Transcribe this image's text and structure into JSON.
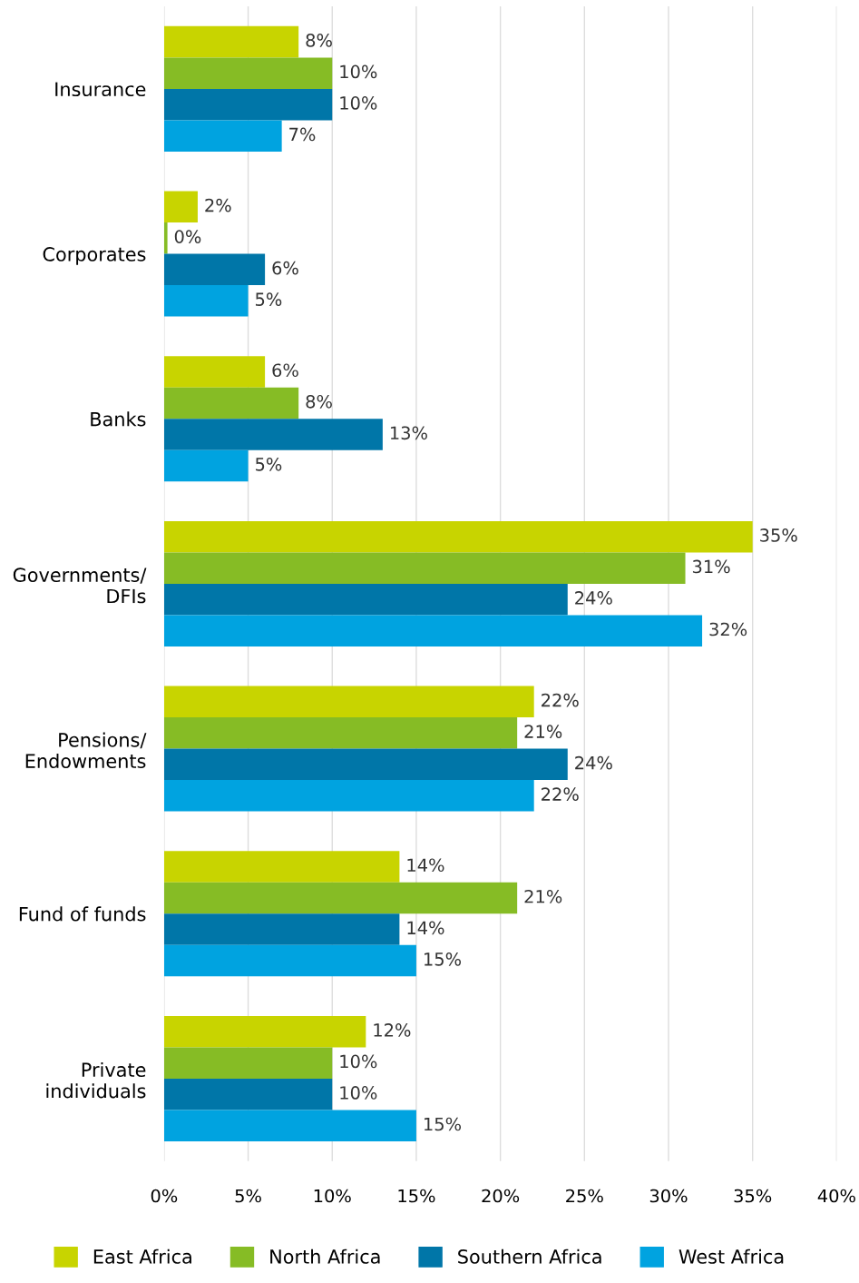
{
  "chart_data": {
    "type": "bar",
    "orientation": "horizontal",
    "categories": [
      "Insurance",
      "Corporates",
      "Banks",
      "Governments/\nDFIs",
      "Pensions/\nEndowments",
      "Fund of funds",
      "Private\nindividuals"
    ],
    "series": [
      {
        "name": "East Africa",
        "color": "#c8d400",
        "values": [
          8,
          2,
          6,
          35,
          22,
          14,
          12
        ],
        "value_labels": [
          "8%",
          "2%",
          "6%",
          "35%",
          "22%",
          "14%",
          "12%"
        ]
      },
      {
        "name": "North Africa",
        "color": "#86bc25",
        "values": [
          10,
          0.2,
          8,
          31,
          21,
          21,
          10
        ],
        "value_labels": [
          "10%",
          "0%",
          "8%",
          "31%",
          "21%",
          "21%",
          "10%"
        ]
      },
      {
        "name": "Southern Africa",
        "color": "#0076a8",
        "values": [
          10,
          6,
          13,
          24,
          24,
          14,
          10
        ],
        "value_labels": [
          "10%",
          "6%",
          "13%",
          "24%",
          "24%",
          "14%",
          "10%"
        ]
      },
      {
        "name": "West Africa",
        "color": "#00a3e0",
        "values": [
          7,
          5,
          5,
          32,
          22,
          15,
          15
        ],
        "value_labels": [
          "7%",
          "5%",
          "5%",
          "32%",
          "22%",
          "15%",
          "15%"
        ]
      }
    ],
    "xlim": [
      0,
      40
    ],
    "xticks": [
      {
        "value": 0,
        "label": "0%"
      },
      {
        "value": 5,
        "label": "5%"
      },
      {
        "value": 10,
        "label": "10%"
      },
      {
        "value": 15,
        "label": "15%"
      },
      {
        "value": 20,
        "label": "20%"
      },
      {
        "value": 25,
        "label": "25%"
      },
      {
        "value": 30,
        "label": "30%"
      },
      {
        "value": 35,
        "label": "35%"
      },
      {
        "value": 40,
        "label": "40%"
      }
    ],
    "grid": "x",
    "legend": "bottom"
  }
}
